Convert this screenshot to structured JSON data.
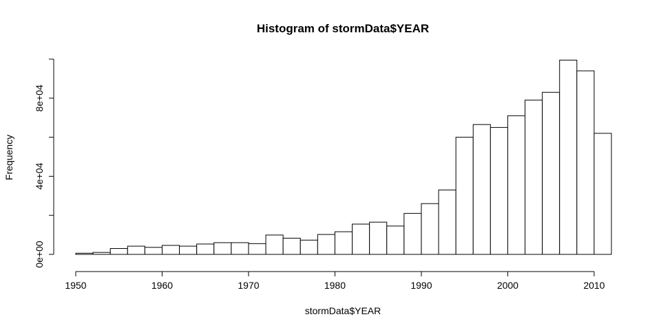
{
  "chart_data": {
    "type": "bar",
    "title": "Histogram of stormData$YEAR",
    "xlabel": "stormData$YEAR",
    "ylabel": "Frequency",
    "xlim": [
      1950,
      2012
    ],
    "ylim": [
      0,
      100000
    ],
    "x_ticks": [
      1950,
      1960,
      1970,
      1980,
      1990,
      2000,
      2010
    ],
    "x_tick_labels": [
      "1950",
      "1960",
      "1970",
      "1980",
      "1990",
      "2000",
      "2010"
    ],
    "y_ticks": [
      0,
      40000,
      80000
    ],
    "y_tick_labels": [
      "0e+00",
      "4e+04",
      "8e+04"
    ],
    "bin_width": 2,
    "bins": [
      {
        "start": 1950,
        "end": 1952,
        "value": 600
      },
      {
        "start": 1952,
        "end": 1954,
        "value": 1000
      },
      {
        "start": 1954,
        "end": 1956,
        "value": 3000
      },
      {
        "start": 1956,
        "end": 1958,
        "value": 4200
      },
      {
        "start": 1958,
        "end": 1960,
        "value": 3600
      },
      {
        "start": 1960,
        "end": 1962,
        "value": 4600
      },
      {
        "start": 1962,
        "end": 1964,
        "value": 4200
      },
      {
        "start": 1964,
        "end": 1966,
        "value": 5300
      },
      {
        "start": 1966,
        "end": 1968,
        "value": 6000
      },
      {
        "start": 1968,
        "end": 1970,
        "value": 6000
      },
      {
        "start": 1970,
        "end": 1972,
        "value": 5500
      },
      {
        "start": 1972,
        "end": 1974,
        "value": 9900
      },
      {
        "start": 1974,
        "end": 1976,
        "value": 8300
      },
      {
        "start": 1976,
        "end": 1978,
        "value": 7300
      },
      {
        "start": 1978,
        "end": 1980,
        "value": 10200
      },
      {
        "start": 1980,
        "end": 1982,
        "value": 11600
      },
      {
        "start": 1982,
        "end": 1984,
        "value": 15500
      },
      {
        "start": 1984,
        "end": 1986,
        "value": 16500
      },
      {
        "start": 1986,
        "end": 1988,
        "value": 14500
      },
      {
        "start": 1988,
        "end": 1990,
        "value": 21000
      },
      {
        "start": 1990,
        "end": 1992,
        "value": 26000
      },
      {
        "start": 1992,
        "end": 1994,
        "value": 33000
      },
      {
        "start": 1994,
        "end": 1996,
        "value": 60000
      },
      {
        "start": 1996,
        "end": 1998,
        "value": 66500
      },
      {
        "start": 1998,
        "end": 2000,
        "value": 65000
      },
      {
        "start": 2000,
        "end": 2002,
        "value": 71000
      },
      {
        "start": 2002,
        "end": 2004,
        "value": 79000
      },
      {
        "start": 2004,
        "end": 2006,
        "value": 83000
      },
      {
        "start": 2006,
        "end": 2008,
        "value": 99500
      },
      {
        "start": 2008,
        "end": 2010,
        "value": 94000
      },
      {
        "start": 2010,
        "end": 2012,
        "value": 62000
      }
    ],
    "bar_fill": "#ffffff",
    "bar_stroke": "#000000",
    "grid": false,
    "legend": "none"
  }
}
